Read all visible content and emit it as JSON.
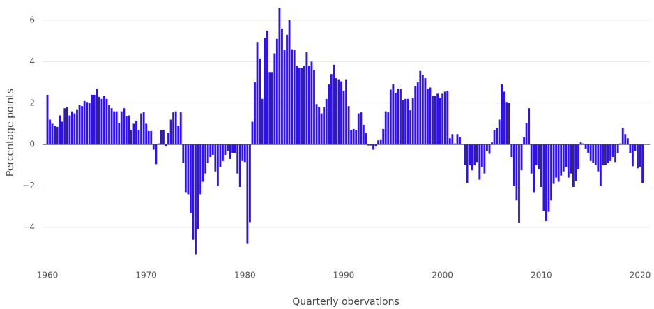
{
  "chart_data": {
    "type": "bar",
    "x_label": "Quarterly obervations",
    "y_label": "Percentage points",
    "color": "#2f10ee",
    "grid": true,
    "xlim": [
      1959.5,
      2021.0
    ],
    "ylim": [
      -5.8,
      6.9
    ],
    "xticks": [
      1960,
      1970,
      1980,
      1990,
      2000,
      2010,
      2020
    ],
    "yticks": [
      {
        "value": -4,
        "label": "−4"
      },
      {
        "value": -2,
        "label": "−2"
      },
      0,
      2,
      4,
      6
    ],
    "x": [
      1960,
      1960.25,
      1960.5,
      1960.75,
      1961,
      1961.25,
      1961.5,
      1961.75,
      1962,
      1962.25,
      1962.5,
      1962.75,
      1963,
      1963.25,
      1963.5,
      1963.75,
      1964,
      1964.25,
      1964.5,
      1964.75,
      1965,
      1965.25,
      1965.5,
      1965.75,
      1966,
      1966.25,
      1966.5,
      1966.75,
      1967,
      1967.25,
      1967.5,
      1967.75,
      1968,
      1968.25,
      1968.5,
      1968.75,
      1969,
      1969.25,
      1969.5,
      1969.75,
      1970,
      1970.25,
      1970.5,
      1970.75,
      1971,
      1971.25,
      1971.5,
      1971.75,
      1972,
      1972.25,
      1972.5,
      1972.75,
      1973,
      1973.25,
      1973.5,
      1973.75,
      1974,
      1974.25,
      1974.5,
      1974.75,
      1975,
      1975.25,
      1975.5,
      1975.75,
      1976,
      1976.25,
      1976.5,
      1976.75,
      1977,
      1977.25,
      1977.5,
      1977.75,
      1978,
      1978.25,
      1978.5,
      1978.75,
      1979,
      1979.25,
      1979.5,
      1979.75,
      1980,
      1980.25,
      1980.5,
      1980.75,
      1981,
      1981.25,
      1981.5,
      1981.75,
      1982,
      1982.25,
      1982.5,
      1982.75,
      1983,
      1983.25,
      1983.5,
      1983.75,
      1984,
      1984.25,
      1984.5,
      1984.75,
      1985,
      1985.25,
      1985.5,
      1985.75,
      1986,
      1986.25,
      1986.5,
      1986.75,
      1987,
      1987.25,
      1987.5,
      1987.75,
      1988,
      1988.25,
      1988.5,
      1988.75,
      1989,
      1989.25,
      1989.5,
      1989.75,
      1990,
      1990.25,
      1990.5,
      1990.75,
      1991,
      1991.25,
      1991.5,
      1991.75,
      1992,
      1992.25,
      1992.5,
      1992.75,
      1993,
      1993.25,
      1993.5,
      1993.75,
      1994,
      1994.25,
      1994.5,
      1994.75,
      1995,
      1995.25,
      1995.5,
      1995.75,
      1996,
      1996.25,
      1996.5,
      1996.75,
      1997,
      1997.25,
      1997.5,
      1997.75,
      1998,
      1998.25,
      1998.5,
      1998.75,
      1999,
      1999.25,
      1999.5,
      1999.75,
      2000,
      2000.25,
      2000.5,
      2000.75,
      2001,
      2001.25,
      2001.5,
      2001.75,
      2002,
      2002.25,
      2002.5,
      2002.75,
      2003,
      2003.25,
      2003.5,
      2003.75,
      2004,
      2004.25,
      2004.5,
      2004.75,
      2005,
      2005.25,
      2005.5,
      2005.75,
      2006,
      2006.25,
      2006.5,
      2006.75,
      2007,
      2007.25,
      2007.5,
      2007.75,
      2008,
      2008.25,
      2008.5,
      2008.75,
      2009,
      2009.25,
      2009.5,
      2009.75,
      2010,
      2010.25,
      2010.5,
      2010.75,
      2011,
      2011.25,
      2011.5,
      2011.75,
      2012,
      2012.25,
      2012.5,
      2012.75,
      2013,
      2013.25,
      2013.5,
      2013.75,
      2014,
      2014.25,
      2014.5,
      2014.75,
      2015,
      2015.25,
      2015.5,
      2015.75,
      2016,
      2016.25,
      2016.5,
      2016.75,
      2017,
      2017.25,
      2017.5,
      2017.75,
      2018,
      2018.25,
      2018.5,
      2018.75,
      2019,
      2019.25,
      2019.5,
      2019.75,
      2020,
      2020.25
    ],
    "values": [
      2.4,
      1.2,
      1.0,
      0.9,
      0.85,
      1.4,
      1.1,
      1.75,
      1.8,
      1.4,
      1.6,
      1.5,
      1.7,
      1.9,
      1.85,
      2.1,
      2.05,
      2.0,
      2.4,
      2.4,
      2.7,
      2.3,
      2.2,
      2.35,
      2.2,
      1.9,
      1.75,
      1.6,
      1.6,
      1.05,
      1.6,
      1.75,
      1.35,
      1.4,
      0.7,
      1.0,
      1.15,
      0.7,
      1.5,
      1.55,
      1.0,
      0.65,
      0.65,
      -0.25,
      -0.95,
      0.05,
      0.7,
      0.7,
      -0.1,
      0.55,
      1.2,
      1.55,
      1.6,
      0.9,
      1.55,
      -0.9,
      -2.3,
      -2.4,
      -3.3,
      -4.6,
      -5.3,
      -4.1,
      -2.4,
      -1.8,
      -1.4,
      -0.9,
      -0.6,
      -0.5,
      -1.3,
      -2.0,
      -1.1,
      -0.8,
      -0.5,
      -0.3,
      -0.7,
      -0.4,
      -0.4,
      -1.4,
      -2.05,
      -0.8,
      -0.85,
      -4.8,
      -3.75,
      1.1,
      3.0,
      4.95,
      4.15,
      2.2,
      5.15,
      5.5,
      3.5,
      3.5,
      4.4,
      5.1,
      6.6,
      5.6,
      4.55,
      5.3,
      6.0,
      4.6,
      4.55,
      3.8,
      3.7,
      3.7,
      3.8,
      4.45,
      3.8,
      4.0,
      3.6,
      1.95,
      1.8,
      1.5,
      1.8,
      2.2,
      2.9,
      3.4,
      3.85,
      3.2,
      3.15,
      3.05,
      2.6,
      3.15,
      1.85,
      0.7,
      0.75,
      0.7,
      1.5,
      1.55,
      0.95,
      0.55,
      -0.05,
      -0.05,
      -0.25,
      -0.1,
      0.2,
      0.25,
      0.75,
      1.6,
      1.55,
      2.65,
      2.9,
      2.5,
      2.7,
      2.7,
      2.15,
      2.2,
      2.2,
      1.65,
      2.25,
      2.8,
      3.0,
      3.55,
      3.35,
      3.2,
      2.7,
      2.75,
      2.35,
      2.35,
      2.45,
      2.25,
      2.45,
      2.55,
      2.6,
      0.3,
      0.5,
      0.05,
      0.5,
      0.35,
      0.0,
      -1.0,
      -1.85,
      -1.0,
      -1.25,
      -1.0,
      -0.85,
      -1.7,
      -1.1,
      -1.4,
      -0.3,
      -0.45,
      0.1,
      0.7,
      0.8,
      1.2,
      2.9,
      2.55,
      2.05,
      2.0,
      -0.6,
      -2.0,
      -2.7,
      -3.8,
      -1.25,
      0.35,
      1.05,
      1.75,
      -1.4,
      -2.3,
      -1.0,
      -1.2,
      -2.05,
      -3.2,
      -3.7,
      -3.25,
      -2.7,
      -1.9,
      -1.6,
      -1.8,
      -1.5,
      -1.3,
      -1.1,
      -1.6,
      -1.4,
      -2.05,
      -1.75,
      -1.2,
      0.1,
      0.05,
      -0.2,
      -0.4,
      -0.8,
      -0.9,
      -1.0,
      -1.3,
      -2.0,
      -1.0,
      -1.0,
      -0.9,
      -0.8,
      -0.6,
      -0.85,
      -0.4,
      0.05,
      0.8,
      0.5,
      0.3,
      -0.4,
      -1.05,
      -0.3,
      -1.15,
      -1.1,
      -1.85
    ]
  }
}
